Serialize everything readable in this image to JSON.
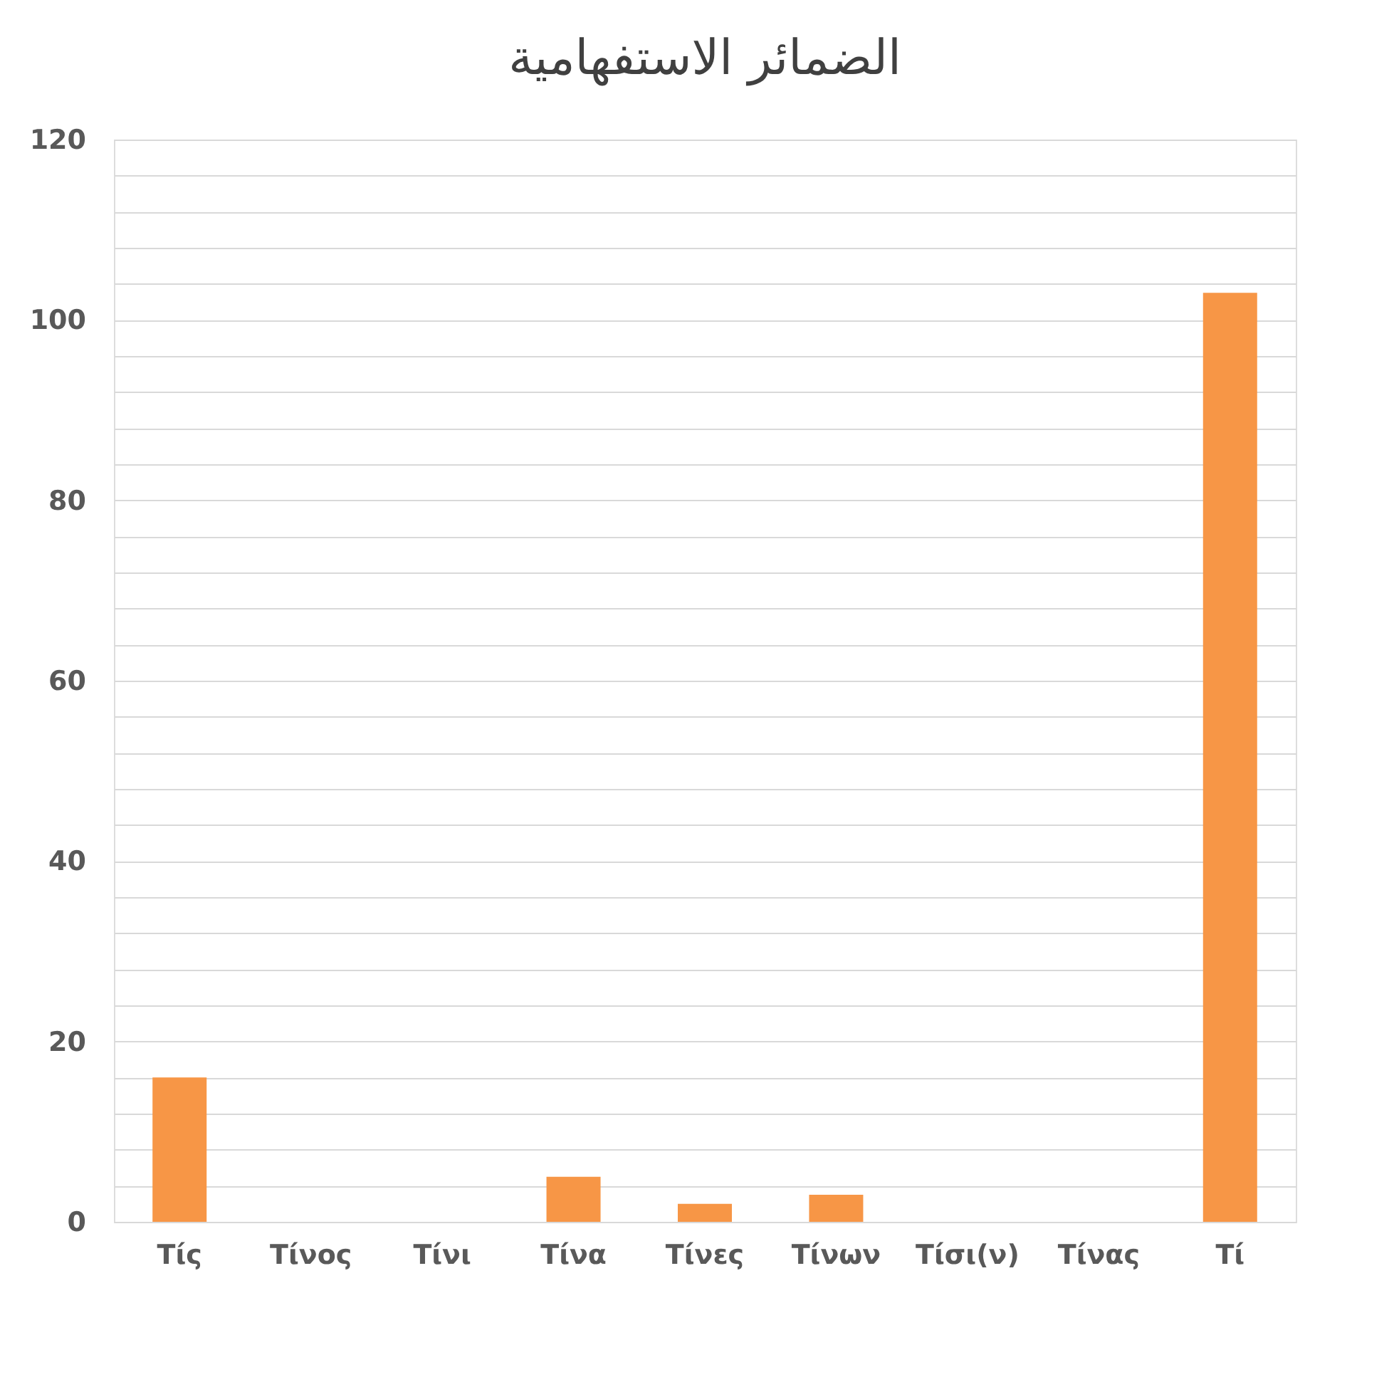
{
  "chart_data": {
    "type": "bar",
    "title": "الضمائر الاستفهامية",
    "categories": [
      "Τίς",
      "Τίνος",
      "Τίνι",
      "Τίνα",
      "Τίνες",
      "Τίνων",
      "Τίσι(ν)",
      "Τίνας",
      "Τί"
    ],
    "values": [
      16,
      0,
      0,
      5,
      2,
      3,
      0,
      0,
      103
    ],
    "color": "#f79646",
    "ylim": [
      0,
      120
    ],
    "yticks": [
      0,
      {
        "value": 4,
        "label": null
      },
      {
        "value": 8,
        "label": null
      },
      {
        "value": 12,
        "label": null
      },
      {
        "value": 16,
        "label": null
      },
      20,
      {
        "value": 24,
        "label": null
      },
      {
        "value": 28,
        "label": null
      },
      {
        "value": 32,
        "label": null
      },
      {
        "value": 36,
        "label": null
      },
      40,
      {
        "value": 44,
        "label": null
      },
      {
        "value": 48,
        "label": null
      },
      {
        "value": 52,
        "label": null
      },
      {
        "value": 56,
        "label": null
      },
      60,
      {
        "value": 64,
        "label": null
      },
      {
        "value": 68,
        "label": null
      },
      {
        "value": 72,
        "label": null
      },
      {
        "value": 76,
        "label": null
      },
      80,
      {
        "value": 84,
        "label": null
      },
      {
        "value": 88,
        "label": null
      },
      {
        "value": 92,
        "label": null
      },
      {
        "value": 96,
        "label": null
      },
      100,
      {
        "value": 104,
        "label": null
      },
      {
        "value": 108,
        "label": null
      },
      {
        "value": 112,
        "label": null
      },
      {
        "value": 116,
        "label": null
      },
      120
    ],
    "grid": "y"
  }
}
